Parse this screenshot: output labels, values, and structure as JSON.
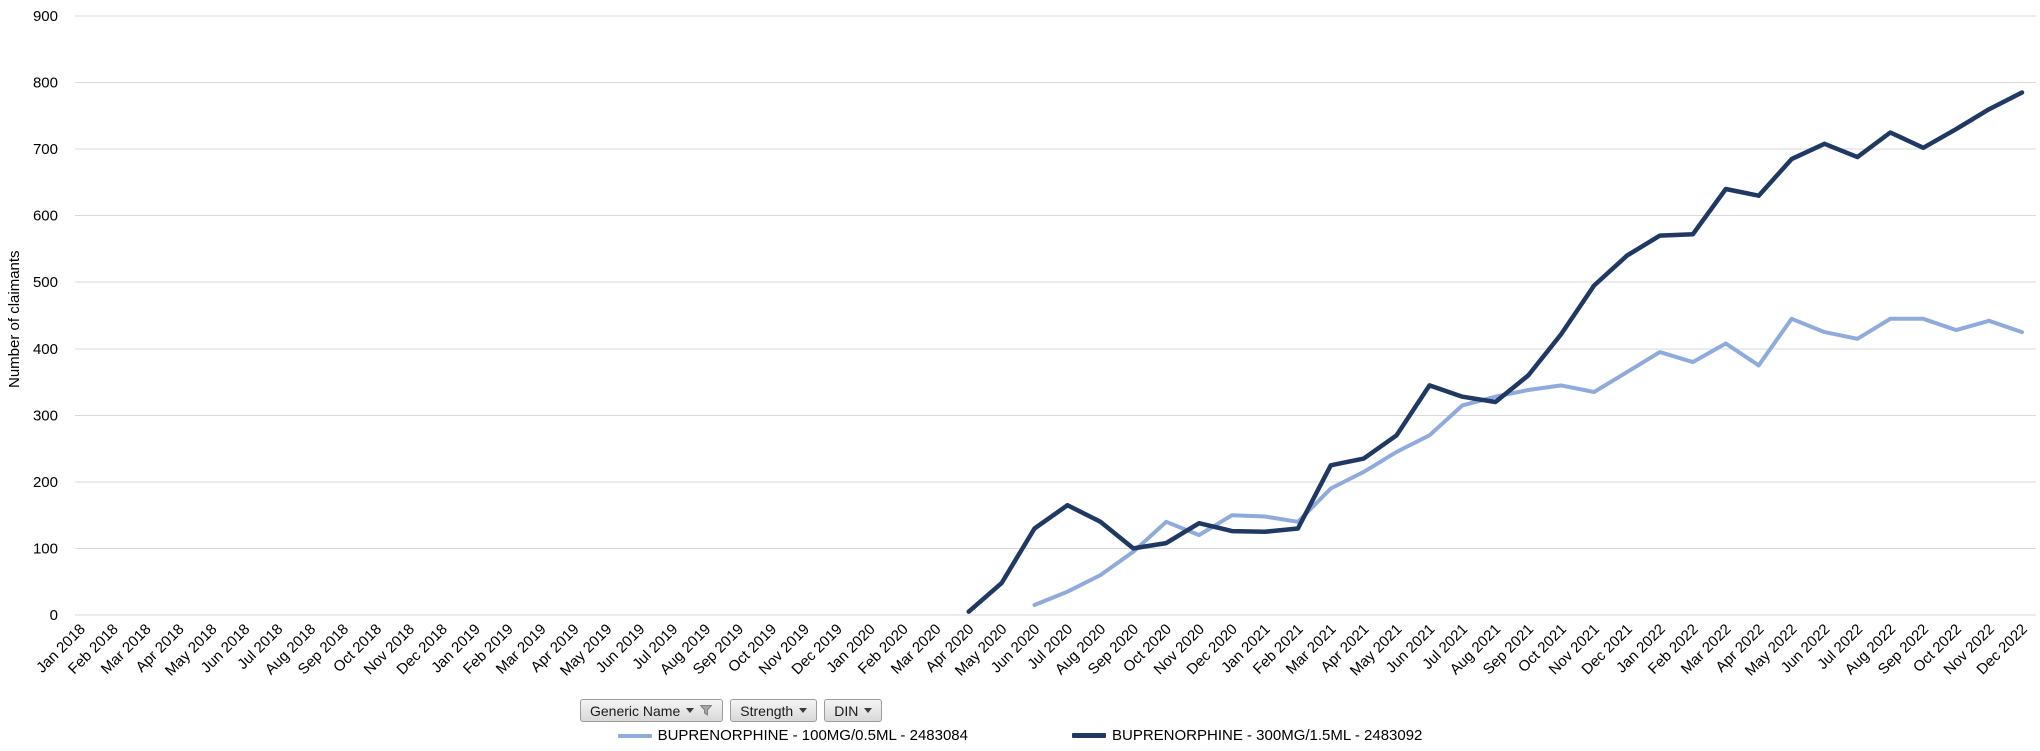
{
  "field_buttons": [
    {
      "label": "Generic Name",
      "has_filter_icon": true
    },
    {
      "label": "Strength",
      "has_filter_icon": false
    },
    {
      "label": "DIN",
      "has_filter_icon": false
    }
  ],
  "chart_data": {
    "type": "line",
    "title": "",
    "xlabel": "",
    "ylabel": "Number of claimants",
    "ylim": [
      0,
      900
    ],
    "yticks": [
      0,
      100,
      200,
      300,
      400,
      500,
      600,
      700,
      800,
      900
    ],
    "grid": "horizontal",
    "legend_position": "bottom-center",
    "categories": [
      "Jan 2018",
      "Feb 2018",
      "Mar 2018",
      "Apr 2018",
      "May 2018",
      "Jun 2018",
      "Jul 2018",
      "Aug 2018",
      "Sep 2018",
      "Oct 2018",
      "Nov 2018",
      "Dec 2018",
      "Jan 2019",
      "Feb 2019",
      "Mar 2019",
      "Apr 2019",
      "May 2019",
      "Jun 2019",
      "Jul 2019",
      "Aug 2019",
      "Sep 2019",
      "Oct 2019",
      "Nov 2019",
      "Dec 2019",
      "Jan 2020",
      "Feb 2020",
      "Mar 2020",
      "Apr 2020",
      "May 2020",
      "Jun 2020",
      "Jul 2020",
      "Aug 2020",
      "Sep 2020",
      "Oct 2020",
      "Nov 2020",
      "Dec 2020",
      "Jan 2021",
      "Feb 2021",
      "Mar 2021",
      "Apr 2021",
      "May 2021",
      "Jun 2021",
      "Jul 2021",
      "Aug 2021",
      "Sep 2021",
      "Oct 2021",
      "Nov 2021",
      "Dec 2021",
      "Jan 2022",
      "Feb 2022",
      "Mar 2022",
      "Apr 2022",
      "May 2022",
      "Jun 2022",
      "Jul 2022",
      "Aug 2022",
      "Sep 2022",
      "Oct 2022",
      "Nov 2022",
      "Dec 2022"
    ],
    "series": [
      {
        "name": "BUPRENORPHINE - 100MG/0.5ML - 2483084",
        "din": "2483084",
        "color": "#8FAADC",
        "values": [
          null,
          null,
          null,
          null,
          null,
          null,
          null,
          null,
          null,
          null,
          null,
          null,
          null,
          null,
          null,
          null,
          null,
          null,
          null,
          null,
          null,
          null,
          null,
          null,
          null,
          null,
          null,
          null,
          null,
          15,
          35,
          60,
          95,
          140,
          120,
          150,
          148,
          140,
          190,
          215,
          245,
          270,
          315,
          328,
          338,
          345,
          335,
          365,
          395,
          380,
          408,
          375,
          445,
          425,
          415,
          445,
          445,
          428,
          442,
          425
        ]
      },
      {
        "name": "BUPRENORPHINE - 300MG/1.5ML - 2483092",
        "din": "2483092",
        "color": "#1F3864",
        "values": [
          null,
          null,
          null,
          null,
          null,
          null,
          null,
          null,
          null,
          null,
          null,
          null,
          null,
          null,
          null,
          null,
          null,
          null,
          null,
          null,
          null,
          null,
          null,
          null,
          null,
          null,
          null,
          5,
          48,
          130,
          165,
          140,
          100,
          108,
          138,
          126,
          125,
          130,
          225,
          235,
          270,
          345,
          328,
          320,
          360,
          422,
          495,
          540,
          570,
          572,
          640,
          630,
          685,
          708,
          688,
          725,
          702,
          730,
          760,
          785
        ]
      }
    ]
  }
}
